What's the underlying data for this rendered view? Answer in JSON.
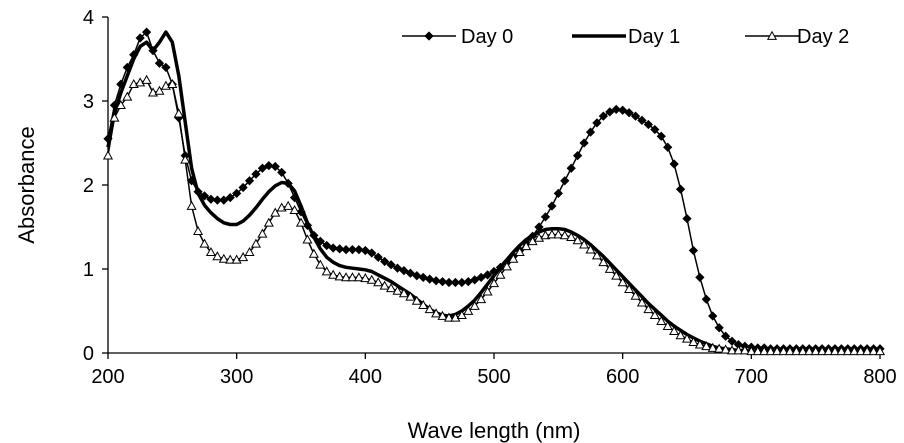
{
  "chart_data": {
    "type": "line",
    "xlabel": "Wave length (nm)",
    "ylabel": "Absorbance",
    "xlim": [
      200,
      800
    ],
    "ylim": [
      0,
      4
    ],
    "xticks": [
      200,
      300,
      400,
      500,
      600,
      700,
      800
    ],
    "yticks": [
      0,
      1,
      2,
      3,
      4
    ],
    "grid": false,
    "legend": "top-right",
    "series": [
      {
        "name": "Day 0",
        "marker": "filled-diamond",
        "color": "#000000",
        "x": [
          200,
          205,
          210,
          215,
          220,
          225,
          230,
          235,
          240,
          245,
          250,
          255,
          260,
          265,
          270,
          275,
          280,
          285,
          290,
          295,
          300,
          305,
          310,
          315,
          320,
          325,
          330,
          335,
          340,
          345,
          350,
          355,
          360,
          365,
          370,
          375,
          380,
          385,
          390,
          395,
          400,
          405,
          410,
          415,
          420,
          425,
          430,
          435,
          440,
          445,
          450,
          455,
          460,
          465,
          470,
          475,
          480,
          485,
          490,
          495,
          500,
          505,
          510,
          515,
          520,
          525,
          530,
          535,
          540,
          545,
          550,
          555,
          560,
          565,
          570,
          575,
          580,
          585,
          590,
          595,
          600,
          605,
          610,
          615,
          620,
          625,
          630,
          635,
          640,
          645,
          650,
          655,
          660,
          665,
          670,
          675,
          680,
          685,
          690,
          695,
          700,
          705,
          710,
          715,
          720,
          725,
          730,
          735,
          740,
          745,
          750,
          755,
          760,
          765,
          770,
          775,
          780,
          785,
          790,
          795,
          800
        ],
        "y": [
          2.55,
          2.95,
          3.2,
          3.4,
          3.55,
          3.75,
          3.82,
          3.6,
          3.45,
          3.4,
          3.2,
          2.8,
          2.35,
          2.05,
          1.92,
          1.87,
          1.83,
          1.82,
          1.82,
          1.85,
          1.9,
          1.97,
          2.05,
          2.13,
          2.2,
          2.23,
          2.22,
          2.15,
          2.02,
          1.85,
          1.68,
          1.52,
          1.4,
          1.33,
          1.28,
          1.25,
          1.24,
          1.23,
          1.23,
          1.23,
          1.22,
          1.19,
          1.14,
          1.09,
          1.05,
          1.01,
          0.98,
          0.95,
          0.92,
          0.9,
          0.88,
          0.86,
          0.85,
          0.84,
          0.84,
          0.84,
          0.85,
          0.87,
          0.9,
          0.93,
          0.97,
          1.02,
          1.08,
          1.15,
          1.22,
          1.3,
          1.39,
          1.5,
          1.62,
          1.75,
          1.9,
          2.05,
          2.2,
          2.35,
          2.5,
          2.63,
          2.74,
          2.82,
          2.87,
          2.9,
          2.89,
          2.86,
          2.82,
          2.77,
          2.72,
          2.66,
          2.58,
          2.45,
          2.25,
          1.95,
          1.6,
          1.22,
          0.9,
          0.64,
          0.44,
          0.3,
          0.2,
          0.14,
          0.1,
          0.08,
          0.07,
          0.06,
          0.06,
          0.05,
          0.05,
          0.05,
          0.05,
          0.05,
          0.05,
          0.05,
          0.05,
          0.05,
          0.05,
          0.05,
          0.05,
          0.05,
          0.05,
          0.05,
          0.05,
          0.05,
          0.05
        ]
      },
      {
        "name": "Day 1",
        "marker": "none",
        "color": "#000000",
        "x": [
          200,
          205,
          210,
          215,
          220,
          225,
          230,
          235,
          240,
          245,
          250,
          255,
          260,
          265,
          270,
          275,
          280,
          285,
          290,
          295,
          300,
          305,
          310,
          315,
          320,
          325,
          330,
          335,
          340,
          345,
          350,
          355,
          360,
          365,
          370,
          375,
          380,
          385,
          390,
          395,
          400,
          405,
          410,
          415,
          420,
          425,
          430,
          435,
          440,
          445,
          450,
          455,
          460,
          465,
          470,
          475,
          480,
          485,
          490,
          495,
          500,
          505,
          510,
          515,
          520,
          525,
          530,
          535,
          540,
          545,
          550,
          555,
          560,
          565,
          570,
          575,
          580,
          585,
          590,
          595,
          600,
          605,
          610,
          615,
          620,
          625,
          630,
          635,
          640,
          645,
          650,
          655,
          660,
          665,
          670,
          675,
          680,
          685,
          690,
          695,
          700,
          705,
          710,
          715,
          720,
          725,
          730,
          735,
          740,
          745,
          750,
          755,
          760,
          765,
          770,
          775,
          780,
          785,
          790,
          795,
          800
        ],
        "y": [
          2.45,
          2.85,
          3.1,
          3.3,
          3.5,
          3.65,
          3.7,
          3.6,
          3.7,
          3.82,
          3.7,
          3.3,
          2.75,
          2.2,
          1.9,
          1.76,
          1.67,
          1.6,
          1.55,
          1.53,
          1.53,
          1.57,
          1.64,
          1.73,
          1.83,
          1.92,
          1.99,
          2.03,
          2.02,
          1.93,
          1.75,
          1.55,
          1.38,
          1.24,
          1.14,
          1.08,
          1.04,
          1.02,
          1.01,
          1.0,
          0.99,
          0.97,
          0.93,
          0.89,
          0.85,
          0.8,
          0.75,
          0.7,
          0.64,
          0.58,
          0.52,
          0.48,
          0.45,
          0.44,
          0.46,
          0.5,
          0.56,
          0.63,
          0.72,
          0.82,
          0.92,
          1.02,
          1.11,
          1.2,
          1.28,
          1.35,
          1.4,
          1.44,
          1.47,
          1.48,
          1.48,
          1.47,
          1.44,
          1.4,
          1.35,
          1.29,
          1.22,
          1.15,
          1.07,
          0.99,
          0.91,
          0.83,
          0.75,
          0.67,
          0.59,
          0.52,
          0.45,
          0.38,
          0.32,
          0.27,
          0.22,
          0.18,
          0.14,
          0.11,
          0.08,
          0.06,
          0.05,
          0.04,
          0.03,
          0.03,
          0.02,
          0.02,
          0.02,
          0.02,
          0.02,
          0.02,
          0.02,
          0.02,
          0.02,
          0.02,
          0.02,
          0.02,
          0.02,
          0.02,
          0.02,
          0.02,
          0.02,
          0.02,
          0.02,
          0.02,
          0.02
        ]
      },
      {
        "name": "Day 2",
        "marker": "open-triangle",
        "color": "#000000",
        "x": [
          200,
          205,
          210,
          215,
          220,
          225,
          230,
          235,
          240,
          245,
          250,
          255,
          260,
          265,
          270,
          275,
          280,
          285,
          290,
          295,
          300,
          305,
          310,
          315,
          320,
          325,
          330,
          335,
          340,
          345,
          350,
          355,
          360,
          365,
          370,
          375,
          380,
          385,
          390,
          395,
          400,
          405,
          410,
          415,
          420,
          425,
          430,
          435,
          440,
          445,
          450,
          455,
          460,
          465,
          470,
          475,
          480,
          485,
          490,
          495,
          500,
          505,
          510,
          515,
          520,
          525,
          530,
          535,
          540,
          545,
          550,
          555,
          560,
          565,
          570,
          575,
          580,
          585,
          590,
          595,
          600,
          605,
          610,
          615,
          620,
          625,
          630,
          635,
          640,
          645,
          650,
          655,
          660,
          665,
          670,
          675,
          680,
          685,
          690,
          695,
          700,
          705,
          710,
          715,
          720,
          725,
          730,
          735,
          740,
          745,
          750,
          755,
          760,
          765,
          770,
          775,
          780,
          785,
          790,
          795,
          800
        ],
        "y": [
          2.35,
          2.8,
          2.95,
          3.05,
          3.2,
          3.22,
          3.25,
          3.1,
          3.12,
          3.18,
          3.2,
          2.85,
          2.3,
          1.75,
          1.45,
          1.3,
          1.2,
          1.15,
          1.12,
          1.11,
          1.11,
          1.14,
          1.2,
          1.3,
          1.42,
          1.55,
          1.67,
          1.73,
          1.75,
          1.7,
          1.55,
          1.35,
          1.18,
          1.05,
          0.97,
          0.93,
          0.91,
          0.9,
          0.9,
          0.9,
          0.89,
          0.87,
          0.84,
          0.8,
          0.77,
          0.74,
          0.71,
          0.67,
          0.62,
          0.57,
          0.52,
          0.47,
          0.44,
          0.42,
          0.42,
          0.45,
          0.5,
          0.56,
          0.64,
          0.73,
          0.83,
          0.93,
          1.03,
          1.12,
          1.2,
          1.27,
          1.33,
          1.37,
          1.4,
          1.41,
          1.41,
          1.4,
          1.38,
          1.34,
          1.29,
          1.23,
          1.16,
          1.08,
          1.0,
          0.92,
          0.84,
          0.76,
          0.68,
          0.6,
          0.52,
          0.45,
          0.38,
          0.32,
          0.26,
          0.21,
          0.17,
          0.13,
          0.1,
          0.08,
          0.06,
          0.05,
          0.04,
          0.03,
          0.03,
          0.03,
          0.02,
          0.02,
          0.02,
          0.02,
          0.02,
          0.02,
          0.02,
          0.02,
          0.02,
          0.02,
          0.02,
          0.02,
          0.02,
          0.02,
          0.02,
          0.02,
          0.02,
          0.02,
          0.02,
          0.02,
          0.02
        ]
      }
    ]
  }
}
